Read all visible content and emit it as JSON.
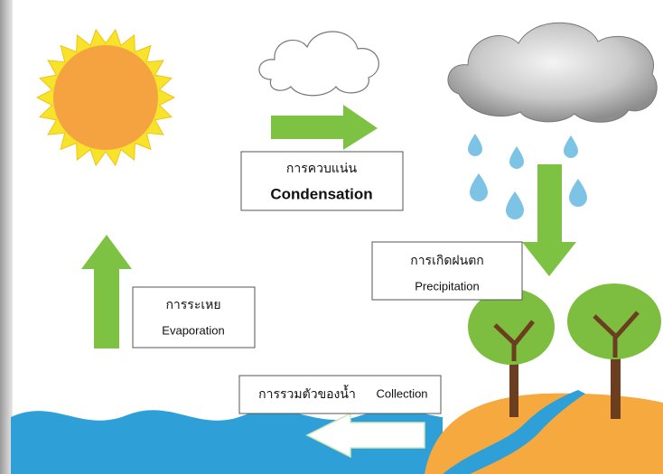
{
  "condensation": {
    "thai": "การควบแน่น",
    "english": "Condensation"
  },
  "precipitation": {
    "thai": "การเกิดฝนตก",
    "english": "Precipitation"
  },
  "evaporation": {
    "thai": "การระเหย",
    "english": "Evaporation"
  },
  "collection": {
    "thai": "การรวมตัวของน้ำ",
    "english": "Collection"
  }
}
